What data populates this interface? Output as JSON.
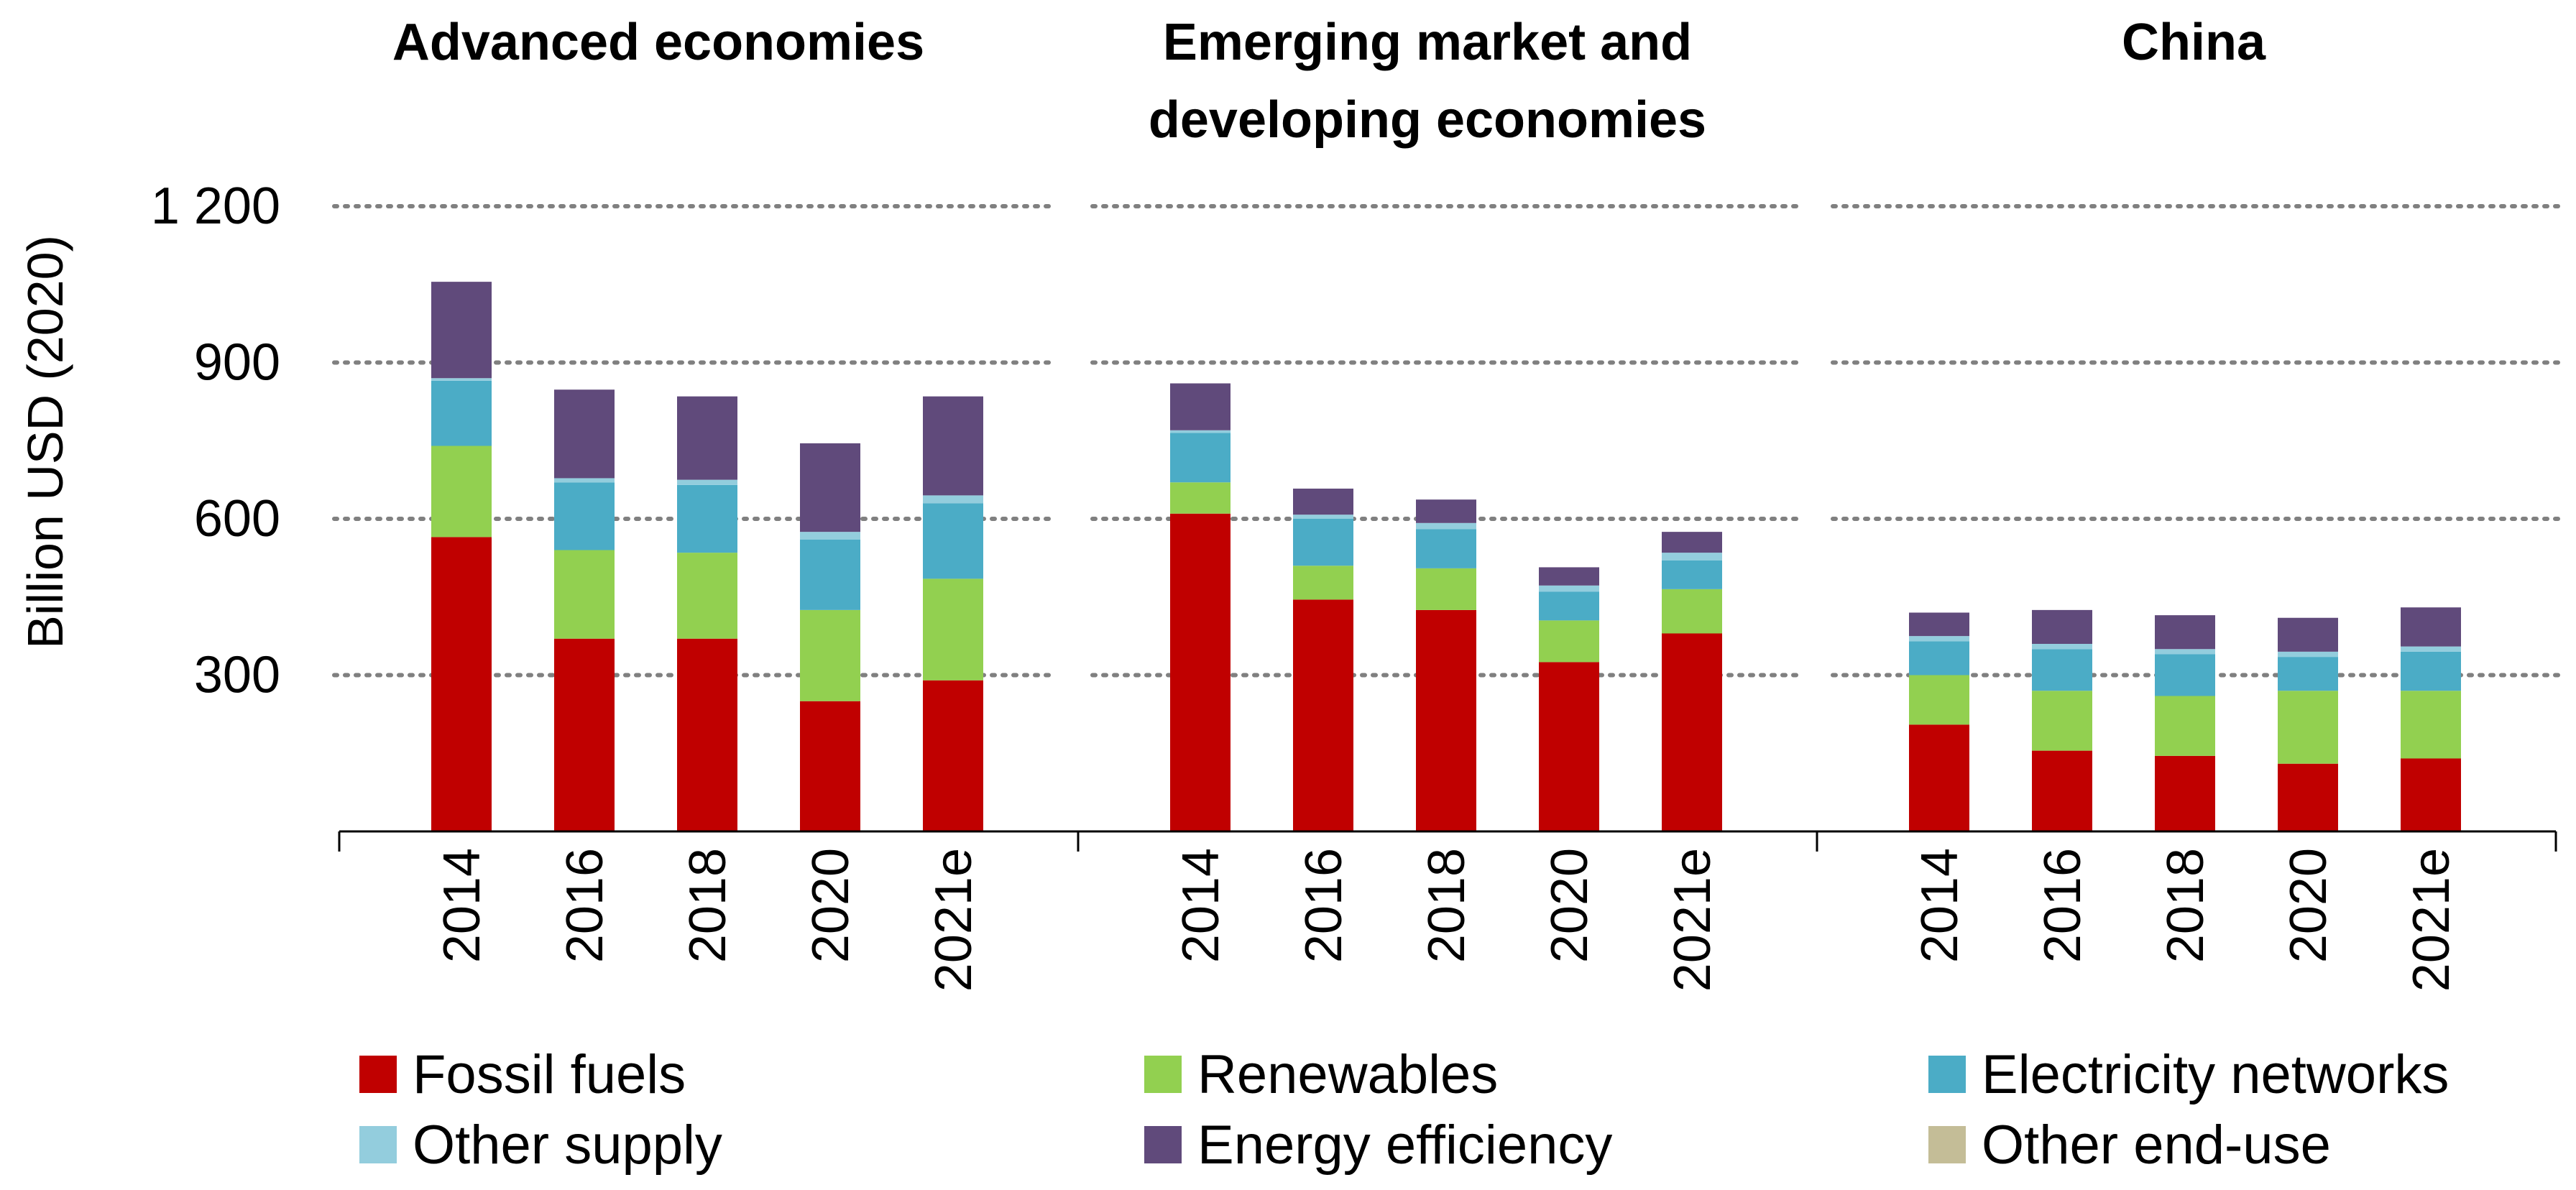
{
  "chart_data": {
    "type": "bar",
    "stacked": true,
    "ylabel": "Billion USD (2020)",
    "ylim": [
      0,
      1200
    ],
    "yticks": [
      300,
      600,
      900,
      1200
    ],
    "ytick_labels": [
      "300",
      "600",
      "900",
      "1 200"
    ],
    "grid": "dotted horizontal",
    "categories": [
      "2014",
      "2016",
      "2018",
      "2020",
      "2021e"
    ],
    "series_names": [
      "Fossil fuels",
      "Renewables",
      "Electricity networks",
      "Other supply",
      "Energy efficiency",
      "Other end-use"
    ],
    "colors": [
      "#C00000",
      "#92D050",
      "#4BACC6",
      "#93CDDD",
      "#604A7B",
      "#C4BD97"
    ],
    "panels": [
      {
        "title_lines": [
          "Advanced economies"
        ],
        "series": [
          {
            "name": "Fossil fuels",
            "values": [
              565,
              370,
              370,
              250,
              290
            ]
          },
          {
            "name": "Renewables",
            "values": [
              175,
              170,
              165,
              175,
              195
            ]
          },
          {
            "name": "Electricity networks",
            "values": [
              125,
              130,
              130,
              135,
              145
            ]
          },
          {
            "name": "Other supply",
            "values": [
              5,
              8,
              10,
              15,
              15
            ]
          },
          {
            "name": "Energy efficiency",
            "values": [
              185,
              170,
              160,
              170,
              190
            ]
          },
          {
            "name": "Other end-use",
            "values": [
              0,
              0,
              0,
              0,
              0
            ]
          }
        ]
      },
      {
        "title_lines": [
          "Emerging market and",
          "developing economies"
        ],
        "series": [
          {
            "name": "Fossil fuels",
            "values": [
              610,
              445,
              425,
              325,
              380
            ]
          },
          {
            "name": "Renewables",
            "values": [
              60,
              65,
              80,
              80,
              85
            ]
          },
          {
            "name": "Electricity networks",
            "values": [
              95,
              90,
              75,
              55,
              55
            ]
          },
          {
            "name": "Other supply",
            "values": [
              5,
              8,
              12,
              12,
              15
            ]
          },
          {
            "name": "Energy efficiency",
            "values": [
              90,
              50,
              45,
              35,
              40
            ]
          },
          {
            "name": "Other end-use",
            "values": [
              0,
              0,
              0,
              0,
              0
            ]
          }
        ]
      },
      {
        "title_lines": [
          "China"
        ],
        "series": [
          {
            "name": "Fossil fuels",
            "values": [
              205,
              155,
              145,
              130,
              140
            ]
          },
          {
            "name": "Renewables",
            "values": [
              95,
              115,
              115,
              140,
              130
            ]
          },
          {
            "name": "Electricity networks",
            "values": [
              65,
              80,
              80,
              65,
              75
            ]
          },
          {
            "name": "Other supply",
            "values": [
              10,
              10,
              10,
              10,
              10
            ]
          },
          {
            "name": "Energy efficiency",
            "values": [
              45,
              65,
              65,
              65,
              75
            ]
          },
          {
            "name": "Other end-use",
            "values": [
              0,
              0,
              0,
              0,
              0
            ]
          }
        ]
      }
    ]
  }
}
